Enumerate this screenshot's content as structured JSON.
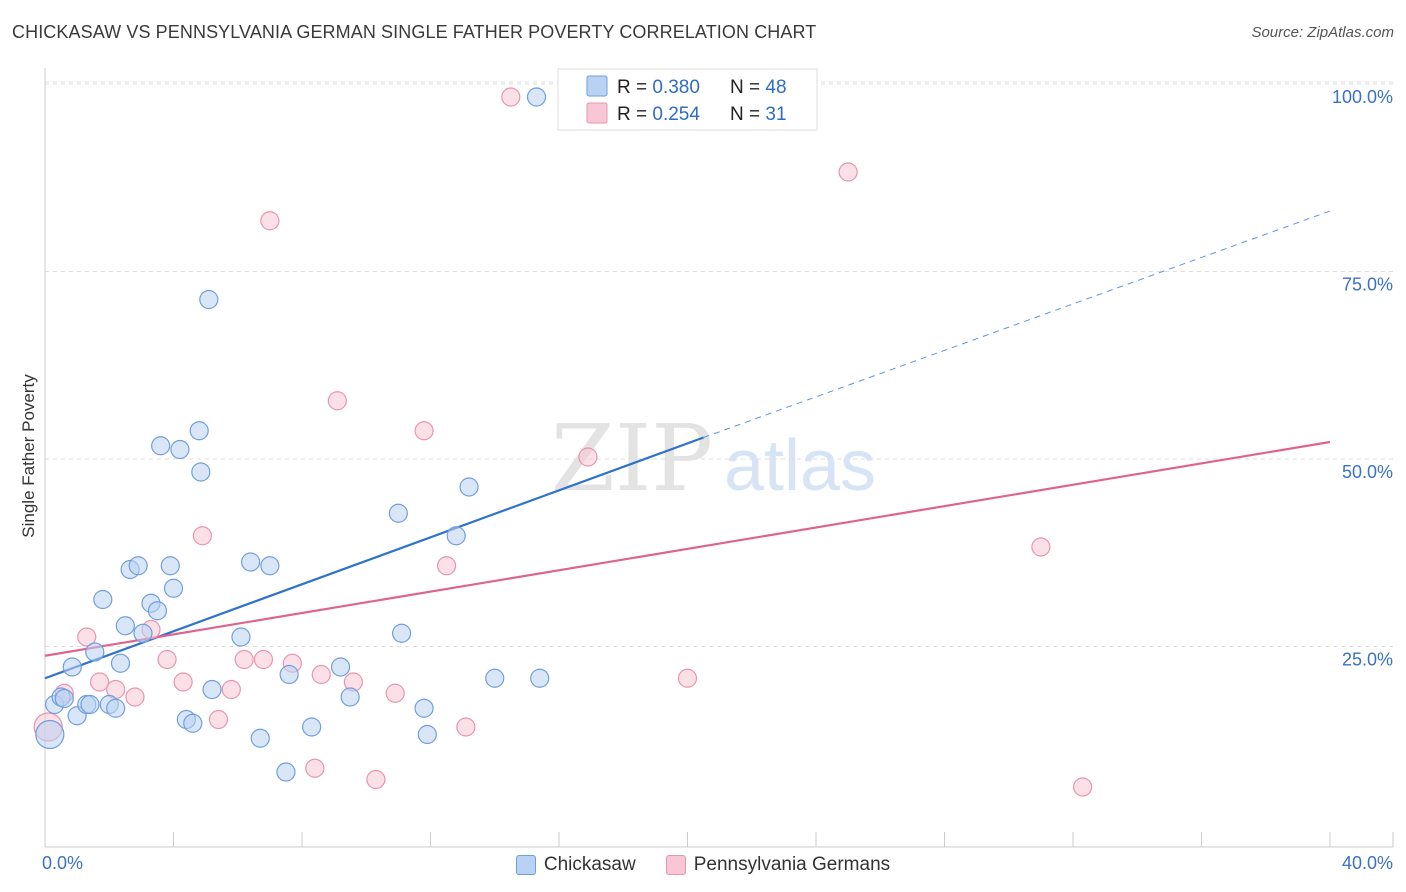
{
  "header": {
    "title": "CHICKASAW VS PENNSYLVANIA GERMAN SINGLE FATHER POVERTY CORRELATION CHART",
    "source": "Source: ZipAtlas.com"
  },
  "watermark": {
    "zip": "ZIP",
    "atlas": "atlas"
  },
  "colors": {
    "blue_fill": "#b9d2f3",
    "blue_stroke": "#6f9fde",
    "blue_line": "#2f72cc",
    "pink_fill": "#f8c6d5",
    "pink_stroke": "#e895b0",
    "pink_line": "#e0628e",
    "tick_text": "#3b72c4",
    "grid": "#dddddd"
  },
  "legend_inset": {
    "rows": [
      {
        "r_label": "R = ",
        "r_value": "0.380",
        "n_label": "N = ",
        "n_value": "48"
      },
      {
        "r_label": "R = ",
        "r_value": "0.254",
        "n_label": "N = ",
        "n_value": "31"
      }
    ]
  },
  "chart_data": {
    "type": "scatter",
    "title": "CHICKASAW VS PENNSYLVANIA GERMAN SINGLE FATHER POVERTY CORRELATION CHART",
    "xlabel": "",
    "ylabel": "Single Father Poverty",
    "xlim": [
      0,
      40
    ],
    "ylim": [
      0,
      103
    ],
    "x_tick_labels": [
      "0.0%",
      "40.0%"
    ],
    "y_ticks": [
      25,
      50,
      75,
      100
    ],
    "y_tick_labels": [
      "25.0%",
      "50.0%",
      "75.0%",
      "100.0%"
    ],
    "grid": "horizontal dashed",
    "legend": "top-center",
    "series": [
      {
        "name": "Chickasaw",
        "color": "#6f9fde",
        "trend": {
          "x": [
            0,
            20.5
          ],
          "y": [
            22.5,
            54.6
          ],
          "dashed_to": [
            40,
            84.8
          ]
        },
        "points": [
          [
            0.15,
            15.0,
            14
          ],
          [
            0.3,
            19.0,
            9
          ],
          [
            0.5,
            20.0,
            9
          ],
          [
            0.6,
            19.8,
            9
          ],
          [
            0.85,
            24.0,
            9
          ],
          [
            1.0,
            17.5,
            9
          ],
          [
            1.3,
            19.0,
            9
          ],
          [
            1.4,
            19.0,
            9
          ],
          [
            1.55,
            26.0,
            9
          ],
          [
            1.8,
            33.0,
            9
          ],
          [
            2.0,
            19.0,
            9
          ],
          [
            2.2,
            18.5,
            9
          ],
          [
            2.35,
            24.5,
            9
          ],
          [
            2.5,
            29.5,
            9
          ],
          [
            2.65,
            37.0,
            9
          ],
          [
            2.9,
            37.5,
            9
          ],
          [
            3.05,
            28.5,
            9
          ],
          [
            3.3,
            32.5,
            9
          ],
          [
            3.5,
            31.5,
            9
          ],
          [
            3.6,
            53.5,
            9
          ],
          [
            3.9,
            37.5,
            9
          ],
          [
            4.0,
            34.5,
            9
          ],
          [
            4.2,
            53.0,
            9
          ],
          [
            4.4,
            17.0,
            9
          ],
          [
            4.6,
            16.5,
            9
          ],
          [
            4.8,
            55.5,
            9
          ],
          [
            4.85,
            50.0,
            9
          ],
          [
            5.1,
            73.0,
            9
          ],
          [
            5.2,
            21.0,
            9
          ],
          [
            6.1,
            28.0,
            9
          ],
          [
            6.4,
            38.0,
            9
          ],
          [
            6.7,
            14.5,
            9
          ],
          [
            7.0,
            37.5,
            9
          ],
          [
            7.5,
            10.0,
            9
          ],
          [
            7.6,
            23.0,
            9
          ],
          [
            8.3,
            16.0,
            9
          ],
          [
            9.2,
            24.0,
            9
          ],
          [
            9.5,
            20.0,
            9
          ],
          [
            11.0,
            44.5,
            9
          ],
          [
            11.1,
            28.5,
            9
          ],
          [
            11.8,
            18.5,
            9
          ],
          [
            11.9,
            15.0,
            9
          ],
          [
            12.8,
            41.5,
            9
          ],
          [
            13.2,
            48.0,
            9
          ],
          [
            14.0,
            22.5,
            9
          ],
          [
            15.4,
            22.5,
            9
          ],
          [
            15.3,
            100.0,
            9
          ],
          [
            16.8,
            100.0,
            9
          ]
        ]
      },
      {
        "name": "Pennsylvania Germans",
        "color": "#e895b0",
        "trend": {
          "x": [
            0,
            40
          ],
          "y": [
            25.5,
            54.0
          ]
        },
        "points": [
          [
            0.1,
            16.0,
            14
          ],
          [
            0.6,
            20.5,
            9
          ],
          [
            1.3,
            28.0,
            9
          ],
          [
            1.7,
            22.0,
            9
          ],
          [
            2.2,
            21.0,
            9
          ],
          [
            2.8,
            20.0,
            9
          ],
          [
            3.3,
            29.0,
            9
          ],
          [
            3.8,
            25.0,
            9
          ],
          [
            4.3,
            22.0,
            9
          ],
          [
            4.9,
            41.5,
            9
          ],
          [
            5.4,
            17.0,
            9
          ],
          [
            5.8,
            21.0,
            9
          ],
          [
            6.2,
            25.0,
            9
          ],
          [
            6.8,
            25.0,
            9
          ],
          [
            7.0,
            83.5,
            9
          ],
          [
            7.7,
            24.5,
            9
          ],
          [
            8.4,
            10.5,
            9
          ],
          [
            8.6,
            23.0,
            9
          ],
          [
            9.1,
            59.5,
            9
          ],
          [
            9.6,
            22.0,
            9
          ],
          [
            10.3,
            9.0,
            9
          ],
          [
            10.9,
            20.5,
            9
          ],
          [
            11.8,
            55.5,
            9
          ],
          [
            12.5,
            37.5,
            9
          ],
          [
            13.1,
            16.0,
            9
          ],
          [
            14.5,
            100.0,
            9
          ],
          [
            16.9,
            52.0,
            9
          ],
          [
            20.0,
            22.5,
            9
          ],
          [
            25.0,
            90.0,
            9
          ],
          [
            31.0,
            40.0,
            9
          ],
          [
            32.3,
            8.0,
            9
          ]
        ]
      }
    ]
  }
}
